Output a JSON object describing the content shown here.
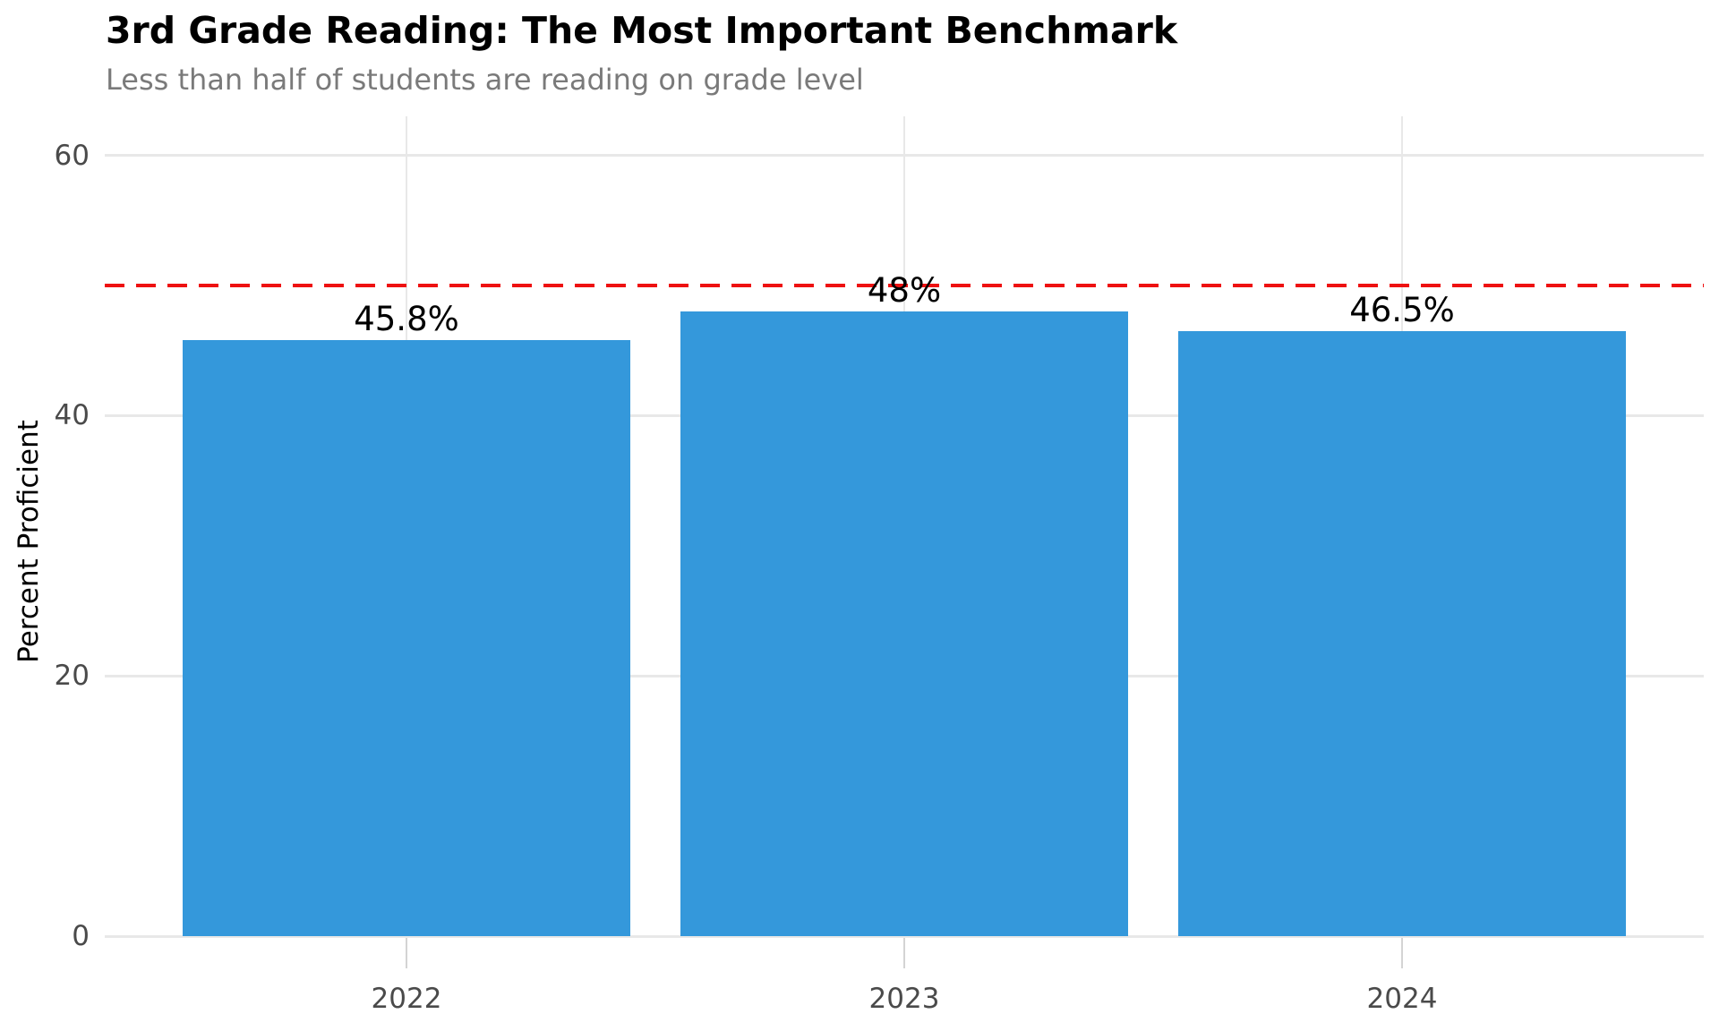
{
  "chart_data": {
    "type": "bar",
    "title": "3rd Grade Reading: The Most Important Benchmark",
    "subtitle": "Less than half of students are reading on grade level",
    "ylabel": "Percent Proficient",
    "xlabel": "",
    "categories": [
      "2022",
      "2023",
      "2024"
    ],
    "values": [
      45.8,
      48,
      46.5
    ],
    "bar_labels": [
      "45.8%",
      "48%",
      "46.5%"
    ],
    "yticks": [
      0,
      20,
      40,
      60
    ],
    "ylim": [
      0,
      63
    ],
    "grid": true,
    "legend": "none",
    "reference_line": {
      "value": 50,
      "style": "dashed"
    },
    "colors": {
      "bar": "#3498db",
      "reference_line": "#ee1111",
      "gridline": "#e8e8e8",
      "tick_labels": "#4a4a4a",
      "tick_marks": "#d4d4d4",
      "title": "#000000",
      "subtitle": "#7a7a7a",
      "axis_label": "#000000",
      "bar_value_labels": "#000000",
      "background": "#ffffff"
    }
  }
}
